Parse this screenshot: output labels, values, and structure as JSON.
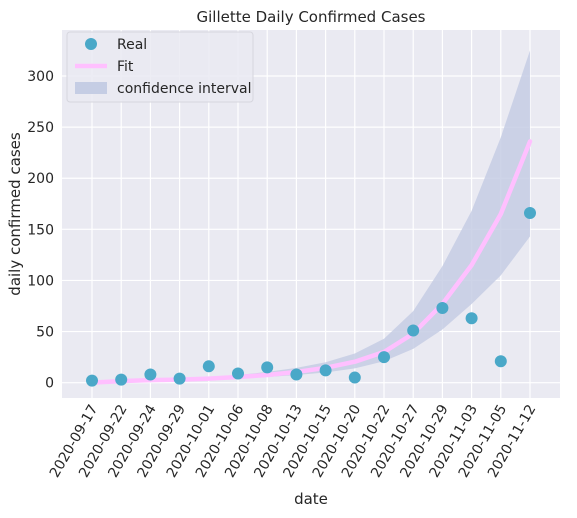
{
  "chart_data": {
    "type": "scatter",
    "title": "Gillette Daily Confirmed Cases",
    "xlabel": "date",
    "ylabel": "daily confirmed cases",
    "categories": [
      "2020-09-17",
      "2020-09-22",
      "2020-09-24",
      "2020-09-29",
      "2020-10-01",
      "2020-10-06",
      "2020-10-08",
      "2020-10-13",
      "2020-10-15",
      "2020-10-20",
      "2020-10-22",
      "2020-10-27",
      "2020-10-29",
      "2020-11-03",
      "2020-11-05",
      "2020-11-12"
    ],
    "ylim": [
      -15,
      345
    ],
    "yticks": [
      0,
      50,
      100,
      150,
      200,
      250,
      300
    ],
    "grid": true,
    "legend_position": "top-left",
    "series": [
      {
        "name": "Real",
        "kind": "points",
        "color": "#4aa8c8",
        "values": [
          2,
          3,
          8,
          4,
          16,
          9,
          15,
          8,
          12,
          5,
          25,
          51,
          73,
          63,
          21,
          166
        ]
      },
      {
        "name": "Fit",
        "kind": "line",
        "color": "#ffc0ff",
        "values": [
          0,
          1.5,
          2.5,
          3,
          4,
          5.5,
          7.5,
          10.5,
          14.5,
          20.5,
          30,
          48,
          77,
          115,
          165,
          236
        ]
      },
      {
        "name": "confidence interval",
        "kind": "band",
        "color": "#c5cde4",
        "lower": [
          0,
          1,
          2,
          2.5,
          3,
          4,
          5.5,
          7.5,
          10,
          14,
          21,
          33,
          52,
          77,
          105,
          143
        ],
        "upper": [
          0,
          2,
          3,
          4,
          5.5,
          7.5,
          10.5,
          14.5,
          20,
          28.5,
          43,
          70,
          114,
          168,
          240,
          325
        ]
      }
    ]
  }
}
